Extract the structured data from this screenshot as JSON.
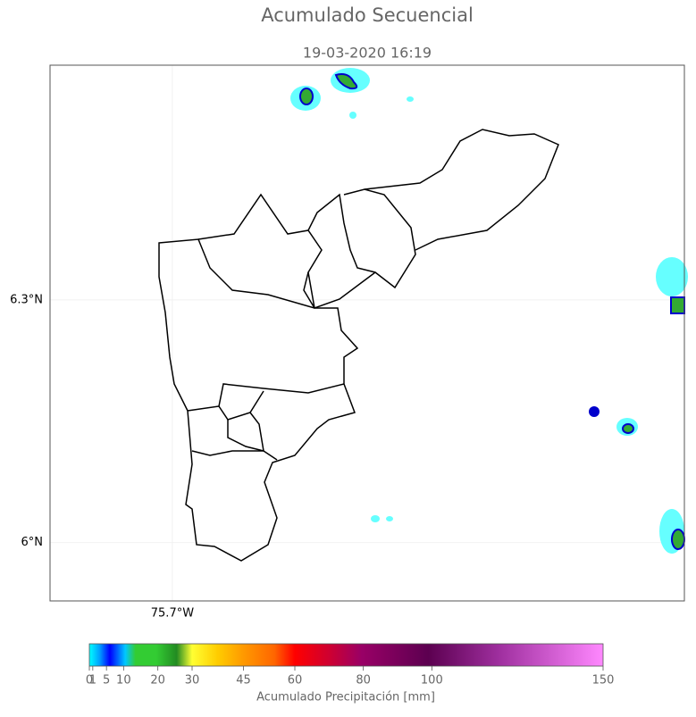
{
  "map": {
    "title": "Acumulado Secuencial",
    "subtitle": "19-03-2020 16:19",
    "xlim": [
      -75.851,
      -75.068
    ],
    "ylim": [
      5.928,
      6.59
    ],
    "xticks": [
      {
        "value": -75.7,
        "label": "75.7°W"
      }
    ],
    "yticks": [
      {
        "value": 6.3,
        "label": "6.3°N"
      },
      {
        "value": 6.0,
        "label": "6°N"
      }
    ],
    "grid": true
  },
  "colorbar": {
    "label": "Acumulado Precipitación [mm]",
    "lim": [
      0,
      150
    ],
    "ticks": [
      0,
      1,
      5,
      10,
      20,
      30,
      45,
      60,
      80,
      100,
      150
    ]
  }
}
